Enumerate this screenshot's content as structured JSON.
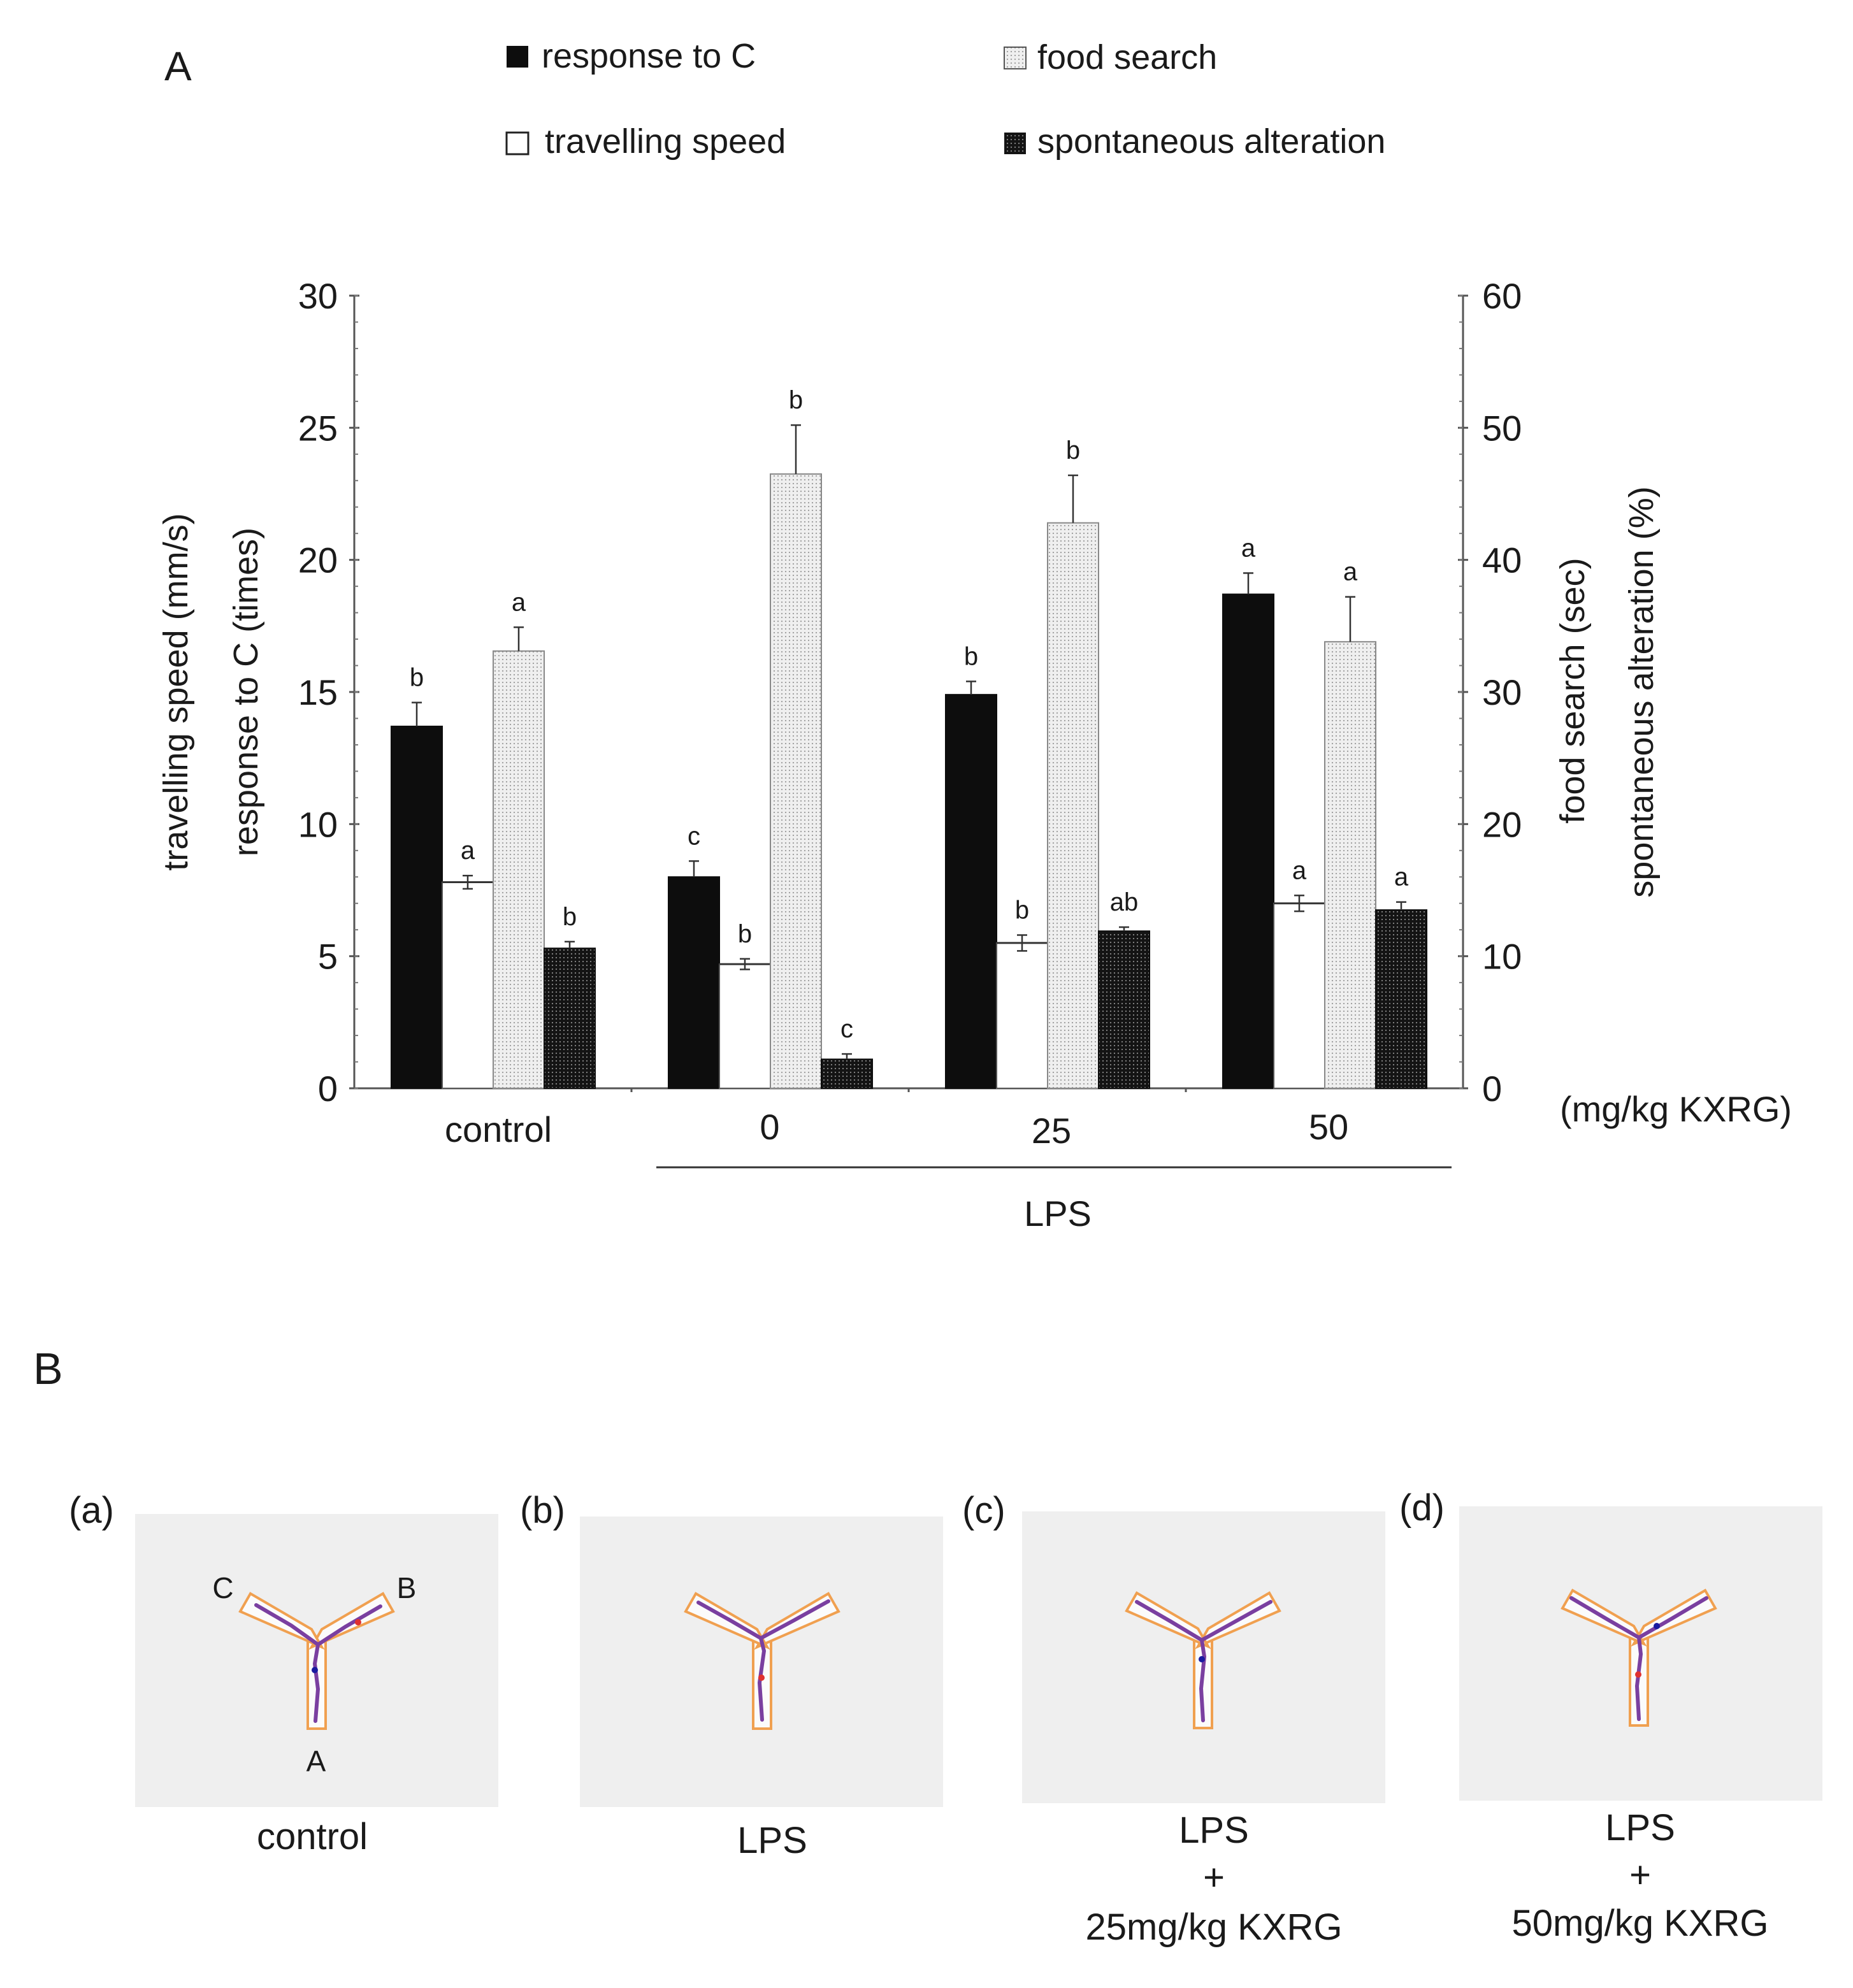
{
  "panel_a_label": "A",
  "panel_b_label": "B",
  "chart_data": {
    "type": "bar",
    "categories": [
      "control",
      "0",
      "25",
      "50"
    ],
    "group_label": "LPS",
    "dose_unit_label": "(mg/kg KXRG)",
    "legend": [
      "response to C",
      "food search",
      "travelling speed",
      "spontaneous alteration"
    ],
    "left_axis": {
      "labels": [
        "travelling speed (mm/s)",
        "response to C (times)"
      ],
      "ylim": [
        0,
        30
      ],
      "ticks": [
        "0",
        "5",
        "10",
        "15",
        "20",
        "25",
        "30"
      ]
    },
    "right_axis": {
      "labels": [
        "food search (sec)",
        "spontaneous alteration (%)"
      ],
      "ylim": [
        0,
        60
      ],
      "ticks": [
        "0",
        "10",
        "20",
        "30",
        "40",
        "50",
        "60"
      ]
    },
    "series": [
      {
        "name": "response to C",
        "axis": "left",
        "color": "#0d0d0d",
        "values": [
          13.7,
          8.0,
          14.9,
          18.7
        ],
        "errors": [
          0.9,
          0.6,
          0.5,
          0.8
        ],
        "letters": [
          "b",
          "c",
          "b",
          "a"
        ]
      },
      {
        "name": "travelling speed",
        "axis": "left",
        "color": "#ffffff",
        "values": [
          7.8,
          4.7,
          5.5,
          7.0
        ],
        "errors": [
          0.25,
          0.2,
          0.3,
          0.3
        ],
        "letters": [
          "a",
          "b",
          "b",
          "a"
        ]
      },
      {
        "name": "food search",
        "axis": "right",
        "color": "#e4e4e4",
        "values": [
          33.1,
          46.5,
          42.8,
          33.8
        ],
        "errors": [
          1.8,
          3.7,
          3.6,
          3.4
        ],
        "letters": [
          "a",
          "b",
          "b",
          "a"
        ]
      },
      {
        "name": "spontaneous alteration",
        "axis": "right",
        "color": "#222222",
        "values": [
          10.6,
          2.2,
          11.9,
          13.5
        ],
        "errors": [
          0.5,
          0.4,
          0.3,
          0.6
        ],
        "letters": [
          "b",
          "c",
          "ab",
          "a"
        ]
      }
    ]
  },
  "panel_b": {
    "subpanels": [
      {
        "tag": "(a)",
        "caption": [
          "control"
        ],
        "arm_labels": [
          "C",
          "B",
          "A"
        ]
      },
      {
        "tag": "(b)",
        "caption": [
          "LPS"
        ],
        "arm_labels": []
      },
      {
        "tag": "(c)",
        "caption": [
          "LPS",
          "+",
          "25mg/kg KXRG"
        ],
        "arm_labels": []
      },
      {
        "tag": "(d)",
        "caption": [
          "LPS",
          "+",
          "50mg/kg KXRG"
        ],
        "arm_labels": []
      }
    ]
  }
}
